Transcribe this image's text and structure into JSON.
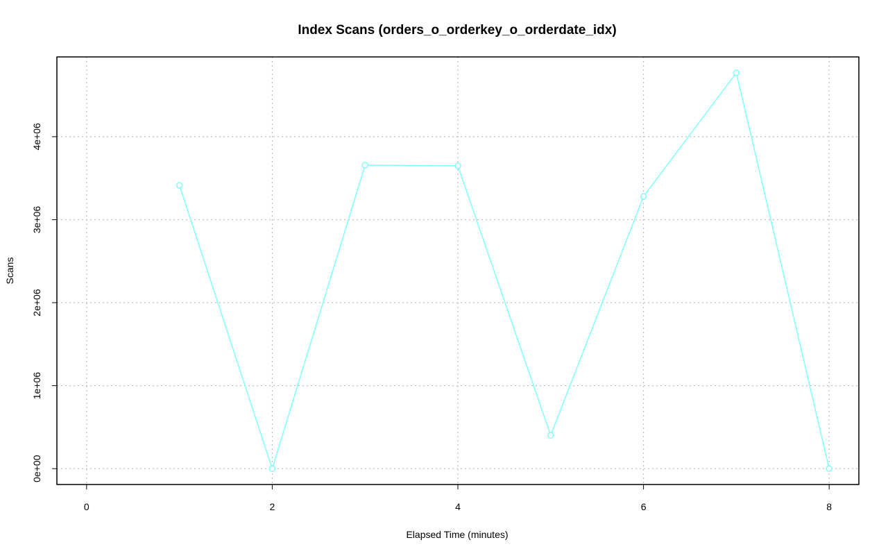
{
  "chart_data": {
    "type": "line",
    "title": "Index Scans (orders_o_orderkey_o_orderdate_idx)",
    "x_label": "Elapsed Time (minutes)",
    "y_label": "Scans",
    "x": [
      1,
      2,
      3,
      4,
      5,
      6,
      7,
      8
    ],
    "series": [
      {
        "name": "Scans",
        "color": "#7fffff",
        "values": [
          3414000,
          0,
          3657000,
          3649000,
          402000,
          3280000,
          4770000,
          0
        ]
      }
    ],
    "xlim": [
      -0.32,
      8.32
    ],
    "xticks": [
      0,
      2,
      4,
      6,
      8
    ],
    "ylim": [
      -191000,
      4961000
    ],
    "yticks": [
      {
        "value": 0,
        "label": "0e+00"
      },
      {
        "value": 1000000,
        "label": "1e+06"
      },
      {
        "value": 2000000,
        "label": "2e+06"
      },
      {
        "value": 3000000,
        "label": "3e+06"
      },
      {
        "value": 4000000,
        "label": "4e+06"
      }
    ],
    "grid": true
  }
}
